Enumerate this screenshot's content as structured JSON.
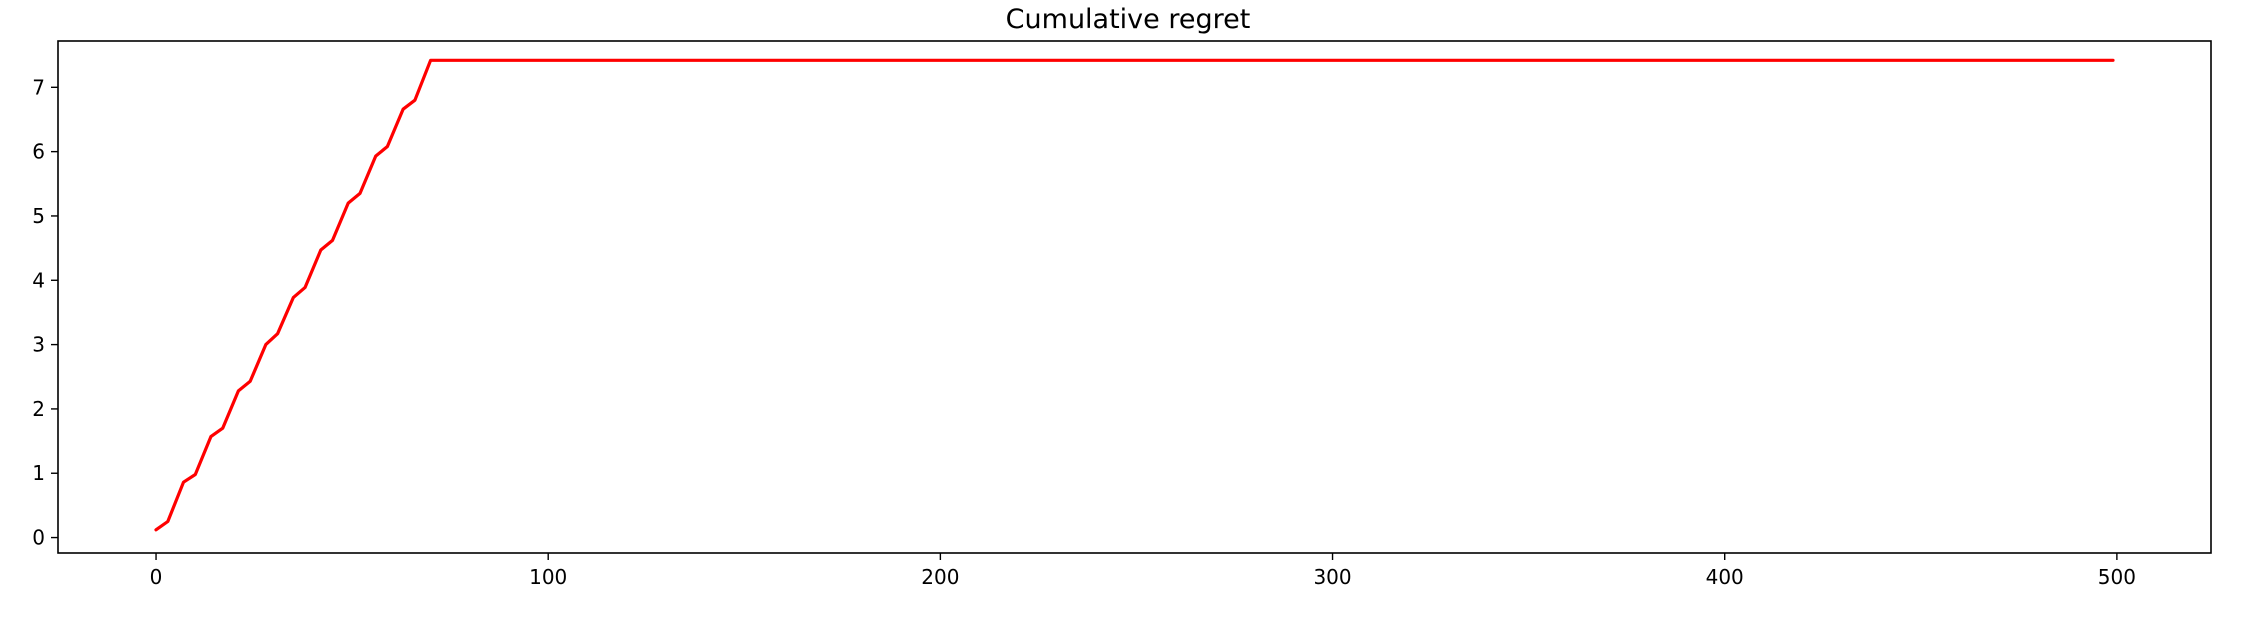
{
  "chart_data": {
    "type": "line",
    "title": "Cumulative regret",
    "xlabel": "",
    "ylabel": "",
    "xlim": [
      -25,
      524
    ],
    "ylim": [
      -0.24,
      7.72
    ],
    "xticks": [
      0,
      100,
      200,
      300,
      400,
      500
    ],
    "yticks": [
      0,
      1,
      2,
      3,
      4,
      5,
      6,
      7
    ],
    "grid": false,
    "series": [
      {
        "color": "#ff0000",
        "x": [
          0,
          3,
          7,
          10,
          14,
          17,
          21,
          24,
          28,
          31,
          35,
          38,
          42,
          45,
          49,
          52,
          56,
          59,
          63,
          66,
          70,
          499
        ],
        "values": [
          0.12,
          0.25,
          0.86,
          0.98,
          1.57,
          1.7,
          2.28,
          2.43,
          3.0,
          3.17,
          3.73,
          3.89,
          4.47,
          4.62,
          5.2,
          5.35,
          5.93,
          6.08,
          6.66,
          6.8,
          7.42,
          7.42
        ]
      }
    ]
  }
}
